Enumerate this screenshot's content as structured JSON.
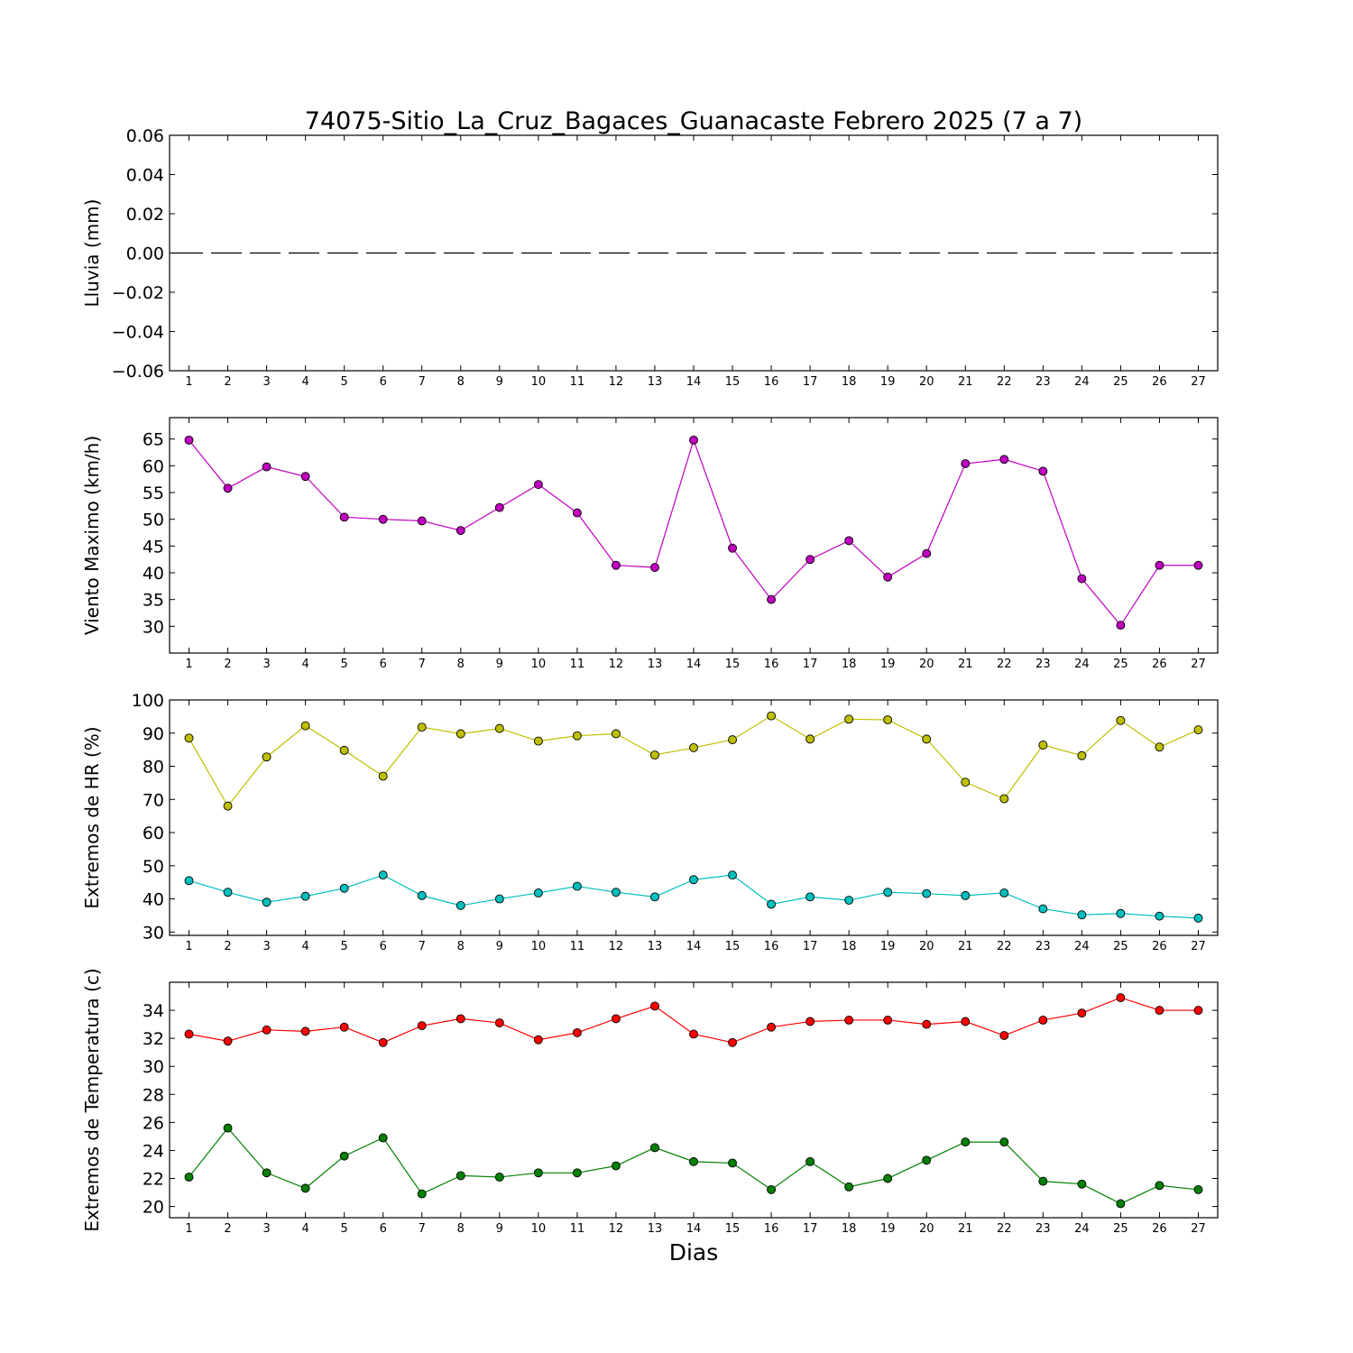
{
  "chart_data": {
    "title": "74075-Sitio_La_Cruz_Bagaces_Guanacaste Febrero 2025  (7 a 7)",
    "xlabel": "Dias",
    "x": [
      1,
      2,
      3,
      4,
      5,
      6,
      7,
      8,
      9,
      10,
      11,
      12,
      13,
      14,
      15,
      16,
      17,
      18,
      19,
      20,
      21,
      22,
      23,
      24,
      25,
      26,
      27
    ],
    "xtick_labels": [
      "1",
      "2",
      "3",
      "4",
      "5",
      "6",
      "7",
      "8",
      "9",
      "10",
      "11",
      "12",
      "13",
      "14",
      "15",
      "16",
      "17",
      "18",
      "19",
      "20",
      "21",
      "22",
      "23",
      "24",
      "25",
      "26",
      "27"
    ],
    "xlim": [
      0.5,
      27.5
    ],
    "panels": [
      {
        "type": "line",
        "ylabel": "Lluvia (mm)",
        "ylim": [
          -0.06,
          0.06
        ],
        "yticks": [
          -0.06,
          -0.04,
          -0.02,
          0.0,
          0.02,
          0.04,
          0.06
        ],
        "ytick_labels": [
          "−0.06",
          "−0.04",
          "−0.02",
          "0.00",
          "0.02",
          "0.04",
          "0.06"
        ],
        "series": [
          {
            "color": "#000000",
            "line_style": "dashed",
            "markers": false,
            "values": [
              0,
              0,
              0,
              0,
              0,
              0,
              0,
              0,
              0,
              0,
              0,
              0,
              0,
              0,
              0,
              0,
              0,
              0,
              0,
              0,
              0,
              0,
              0,
              0,
              0,
              0,
              0
            ]
          }
        ]
      },
      {
        "type": "line",
        "ylabel": "Viento Maximo (km/h)",
        "ylim": [
          25,
          69
        ],
        "yticks": [
          30,
          35,
          40,
          45,
          50,
          55,
          60,
          65
        ],
        "ytick_labels": [
          "30",
          "35",
          "40",
          "45",
          "50",
          "55",
          "60",
          "65"
        ],
        "series": [
          {
            "color": "#bf00bf",
            "markers": true,
            "values": [
              64.8,
              55.8,
              59.8,
              58.0,
              50.4,
              50.0,
              49.7,
              47.9,
              52.2,
              56.5,
              51.2,
              41.4,
              41.0,
              64.8,
              44.6,
              35.0,
              42.5,
              46.0,
              39.2,
              43.6,
              60.4,
              61.2,
              59.0,
              38.9,
              30.2,
              41.4,
              41.4
            ]
          }
        ]
      },
      {
        "type": "line",
        "ylabel": "Extremos de HR (%)",
        "ylim": [
          29,
          100
        ],
        "yticks": [
          30,
          40,
          50,
          60,
          70,
          80,
          90,
          100
        ],
        "ytick_labels": [
          "30",
          "40",
          "50",
          "60",
          "70",
          "80",
          "90",
          "100"
        ],
        "series": [
          {
            "color": "#bfbf00",
            "markers": true,
            "values": [
              88.5,
              68.0,
              82.8,
              92.2,
              84.8,
              77.0,
              91.8,
              89.8,
              91.4,
              87.6,
              89.2,
              89.8,
              83.4,
              85.6,
              88.0,
              95.2,
              88.2,
              94.2,
              94.0,
              88.2,
              75.2,
              70.2,
              86.4,
              83.2,
              93.8,
              85.8,
              91.0
            ]
          },
          {
            "color": "#00bfbf",
            "markers": true,
            "values": [
              45.5,
              42.0,
              39.0,
              40.8,
              43.2,
              47.2,
              41.0,
              38.0,
              40.0,
              41.8,
              43.8,
              42.0,
              40.6,
              45.8,
              47.2,
              38.4,
              40.6,
              39.6,
              42.0,
              41.6,
              41.0,
              41.8,
              37.0,
              35.2,
              35.6,
              34.8,
              34.2
            ]
          }
        ]
      },
      {
        "type": "line",
        "ylabel": "Extremos de Temperatura (c)",
        "ylim": [
          19.2,
          36.0
        ],
        "yticks": [
          20,
          22,
          24,
          26,
          28,
          30,
          32,
          34
        ],
        "ytick_labels": [
          "20",
          "22",
          "24",
          "26",
          "28",
          "30",
          "32",
          "34"
        ],
        "series": [
          {
            "color": "#ff0000",
            "markers": true,
            "values": [
              32.3,
              31.8,
              32.6,
              32.5,
              32.8,
              31.7,
              32.9,
              33.4,
              33.1,
              31.9,
              32.4,
              33.4,
              34.3,
              32.3,
              31.7,
              32.8,
              33.2,
              33.3,
              33.3,
              33.0,
              33.2,
              32.2,
              33.3,
              33.8,
              34.9,
              34.0,
              34.0
            ]
          },
          {
            "color": "#008000",
            "markers": true,
            "values": [
              22.1,
              25.6,
              22.4,
              21.3,
              23.6,
              24.9,
              20.9,
              22.2,
              22.1,
              22.4,
              22.4,
              22.9,
              24.2,
              23.2,
              23.1,
              21.2,
              23.2,
              21.4,
              22.0,
              23.3,
              24.6,
              24.6,
              21.8,
              21.6,
              20.2,
              21.5,
              21.2
            ]
          }
        ]
      }
    ]
  }
}
